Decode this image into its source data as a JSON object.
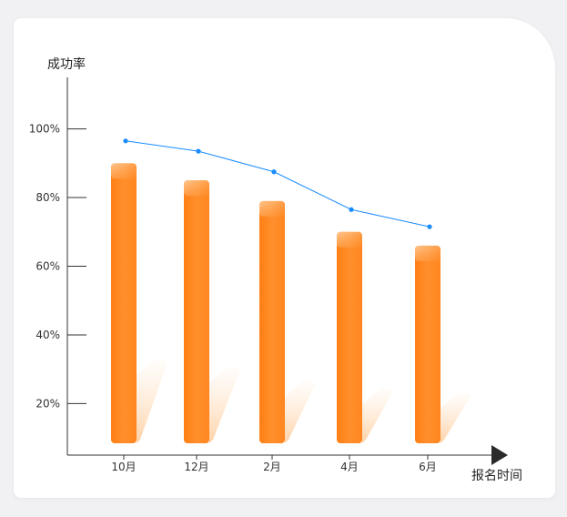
{
  "chart_data": {
    "type": "bar",
    "ylabel": "成功率",
    "xlabel": "报名时间",
    "categories": [
      "10月",
      "12月",
      "2月",
      "4月",
      "6月"
    ],
    "values": [
      90,
      85,
      79,
      70,
      66
    ],
    "line_values": [
      96.5,
      93.5,
      87.5,
      76.5,
      71.5
    ],
    "yticks": [
      "20%",
      "40%",
      "60%",
      "80%",
      "100%"
    ],
    "ytick_values": [
      20,
      40,
      60,
      80,
      100
    ],
    "ylim": [
      5,
      115
    ],
    "bar_color": "#ff8a24",
    "line_color": "#1a8cff",
    "grid": false
  }
}
